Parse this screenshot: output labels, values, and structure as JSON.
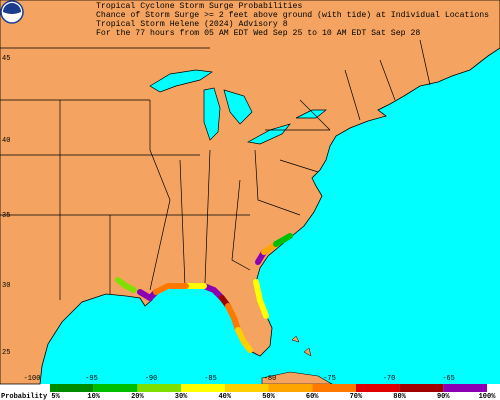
{
  "header": {
    "lines": [
      "Tropical Cyclone Storm Surge Probabilities",
      "Chance of Storm Surge >= 2 feet above ground (with tide) at Individual Locations",
      "Tropical Storm Helene (2024) Advisory 8",
      "For the 77 hours from 05 AM EDT Wed Sep 25 to 10 AM EDT Sat Sep 28"
    ]
  },
  "map": {
    "lat_labels": [
      "45",
      "40",
      "35",
      "30",
      "25"
    ],
    "lon_labels": [
      "-100",
      "-95",
      "-90",
      "-85",
      "-80",
      "-75",
      "-70",
      "-65"
    ]
  },
  "legend": {
    "labels": [
      "Probability 5%",
      "10%",
      "20%",
      "30%",
      "40%",
      "50%",
      "60%",
      "70%",
      "80%",
      "90%",
      "100%"
    ],
    "colors": [
      "#008c00",
      "#00bf00",
      "#7fe000",
      "#ffff00",
      "#ffd000",
      "#ffa500",
      "#ff7800",
      "#e00000",
      "#a00000",
      "#8c00b4"
    ]
  }
}
